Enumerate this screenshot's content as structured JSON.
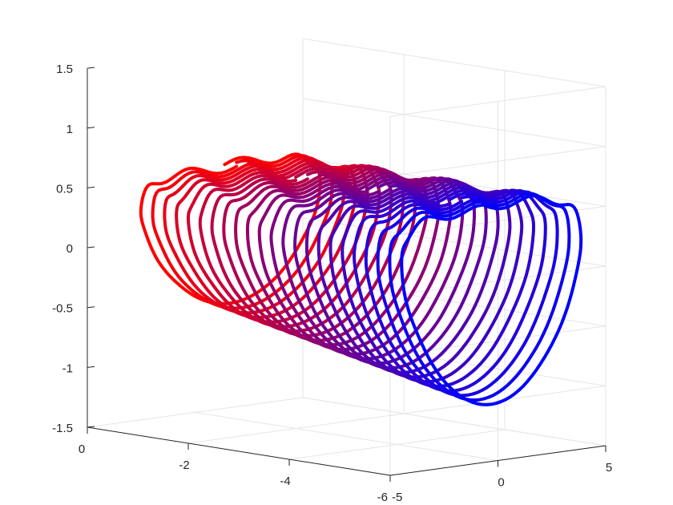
{
  "chart_data": {
    "type": "line",
    "title": "",
    "xlabel": "",
    "ylabel": "",
    "zlabel": "",
    "x_axis": {
      "range": [
        -6,
        0
      ],
      "ticks": [
        0,
        -2,
        -4,
        -6
      ],
      "tick_labels": [
        "0",
        "-2",
        "-4",
        "-6"
      ]
    },
    "y_axis": {
      "range": [
        -5,
        5
      ],
      "ticks": [
        -5,
        0,
        5
      ],
      "tick_labels": [
        "-5",
        "0",
        "5"
      ]
    },
    "z_axis": {
      "range": [
        -1.5,
        1.5
      ],
      "ticks": [
        -1.5,
        -1,
        -0.5,
        0,
        0.5,
        1,
        1.5
      ],
      "tick_labels": [
        "-1.5",
        "-1",
        "-0.5",
        "0",
        "0.5",
        "1",
        "1.5"
      ]
    },
    "grid": true,
    "view": "3d",
    "color_gradient": {
      "start": "#ff0000",
      "end": "#0000ff"
    },
    "trajectory": {
      "loops": 23,
      "x_start": -0.5,
      "x_end": -5.9,
      "y_center": 0.2,
      "y_amplitude": 4.3,
      "z_top": 0.6,
      "z_bottom": -0.75,
      "z_bottom_first": -0.55,
      "z_bottom_last": -1.05
    }
  }
}
